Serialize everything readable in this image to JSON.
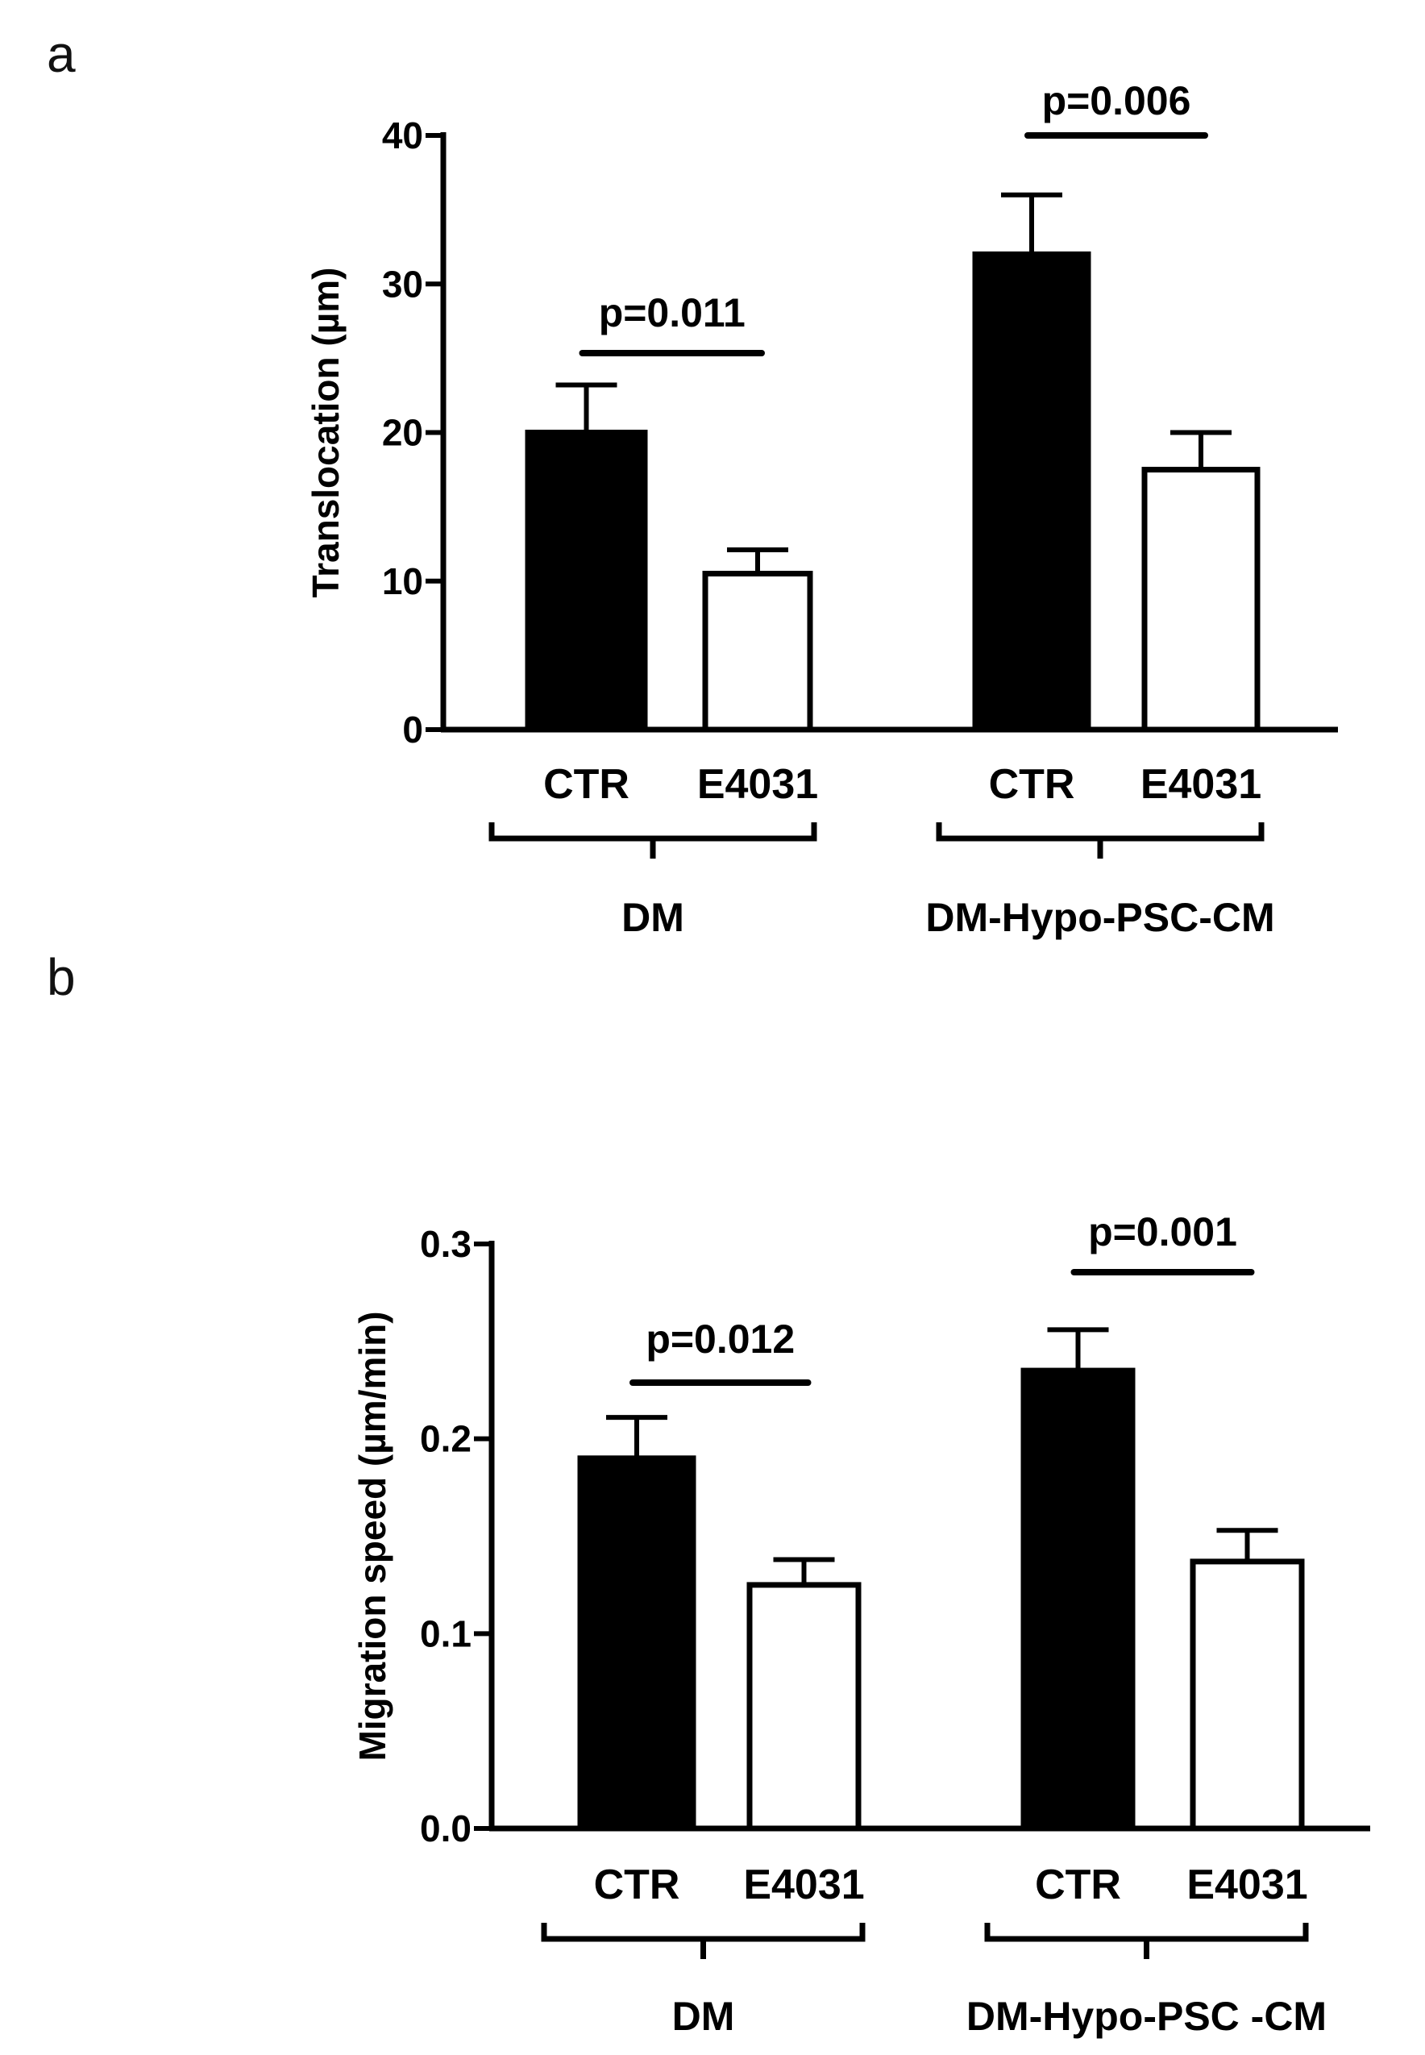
{
  "panels": [
    {
      "label": "a"
    },
    {
      "label": "b"
    }
  ],
  "chart_data": [
    {
      "type": "bar",
      "panel": "a",
      "title": "",
      "ylabel": "Translocation (µm)",
      "xlabel": "",
      "ylim": [
        0,
        40
      ],
      "yticks": [
        "0",
        "10",
        "20",
        "30",
        "40"
      ],
      "groups": [
        {
          "label": "DM",
          "categories": [
            "CTR",
            "E4031"
          ],
          "values": [
            20,
            10.5
          ],
          "errors": [
            3.2,
            1.6
          ],
          "colors": [
            "#000000",
            "#ffffff"
          ],
          "pvalue": "p=0.011"
        },
        {
          "label": "DM-Hypo-PSC-CM",
          "categories": [
            "CTR",
            "E4031"
          ],
          "values": [
            32,
            17.5
          ],
          "errors": [
            4,
            2.5
          ],
          "colors": [
            "#000000",
            "#ffffff"
          ],
          "pvalue": "p=0.006"
        }
      ]
    },
    {
      "type": "bar",
      "panel": "b",
      "title": "",
      "ylabel": "Migration speed (µm/min)",
      "xlabel": "",
      "ylim": [
        0,
        0.3
      ],
      "yticks": [
        "0.0",
        "0.1",
        "0.2",
        "0.3"
      ],
      "groups": [
        {
          "label": "DM",
          "categories": [
            "CTR",
            "E4031"
          ],
          "values": [
            0.19,
            0.125
          ],
          "errors": [
            0.021,
            0.013
          ],
          "colors": [
            "#000000",
            "#ffffff"
          ],
          "pvalue": "p=0.012"
        },
        {
          "label": "DM-Hypo-PSC -CM",
          "categories": [
            "CTR",
            "E4031"
          ],
          "values": [
            0.235,
            0.137
          ],
          "errors": [
            0.021,
            0.016
          ],
          "colors": [
            "#000000",
            "#ffffff"
          ],
          "pvalue": "p=0.001"
        }
      ]
    }
  ]
}
